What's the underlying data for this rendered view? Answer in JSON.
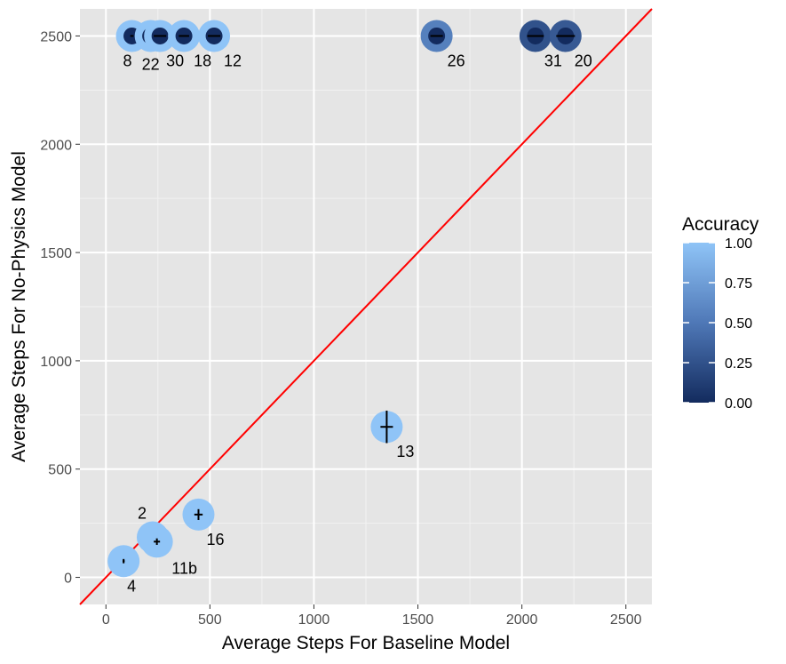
{
  "chart_data": {
    "type": "scatter",
    "xlabel": "Average Steps For Baseline Model",
    "ylabel": "Average Steps For No-Physics Model",
    "xlim": [
      -125,
      2625
    ],
    "ylim": [
      -125,
      2625
    ],
    "xticks": [
      0,
      500,
      1000,
      1500,
      2000,
      2500
    ],
    "yticks": [
      0,
      500,
      1000,
      1500,
      2000,
      2500
    ],
    "grid": true,
    "reference_line": {
      "slope": 1,
      "intercept": 0,
      "color": "#ff0000"
    },
    "legend": {
      "title": "Accuracy",
      "type": "colorbar",
      "position": "right",
      "ticks": [
        "1.00",
        "0.75",
        "0.50",
        "0.25",
        "0.00"
      ],
      "color_low": "#132b5e",
      "color_high": "#8fc4f7"
    },
    "points": [
      {
        "label": "8",
        "x": 125,
        "y": 2500,
        "acc_baseline": 1.0,
        "acc_nophysics": 0.0,
        "xerr": 8,
        "yerr": 0
      },
      {
        "label": "22",
        "x": 215,
        "y": 2500,
        "acc_baseline": 1.0,
        "acc_nophysics": 0.0,
        "xerr": 15,
        "yerr": 0
      },
      {
        "label": "30",
        "x": 260,
        "y": 2500,
        "acc_baseline": 1.0,
        "acc_nophysics": 0.0,
        "xerr": 30,
        "yerr": 0
      },
      {
        "label": "18",
        "x": 375,
        "y": 2500,
        "acc_baseline": 1.0,
        "acc_nophysics": 0.0,
        "xerr": 25,
        "yerr": 0
      },
      {
        "label": "12",
        "x": 520,
        "y": 2500,
        "acc_baseline": 1.0,
        "acc_nophysics": 0.0,
        "xerr": 30,
        "yerr": 0
      },
      {
        "label": "26",
        "x": 1590,
        "y": 2500,
        "acc_baseline": 0.55,
        "acc_nophysics": 0.0,
        "xerr": 30,
        "yerr": 0
      },
      {
        "label": "31",
        "x": 2065,
        "y": 2500,
        "acc_baseline": 0.25,
        "acc_nophysics": 0.0,
        "xerr": 40,
        "yerr": 0
      },
      {
        "label": "20",
        "x": 2210,
        "y": 2500,
        "acc_baseline": 0.3,
        "acc_nophysics": 0.0,
        "xerr": 45,
        "yerr": 0
      },
      {
        "label": "13",
        "x": 1350,
        "y": 695,
        "acc_baseline": 1.0,
        "acc_nophysics": 1.0,
        "xerr": 30,
        "yerr": 75
      },
      {
        "label": "16",
        "x": 445,
        "y": 290,
        "acc_baseline": 1.0,
        "acc_nophysics": 1.0,
        "xerr": 20,
        "yerr": 25
      },
      {
        "label": "2",
        "x": 225,
        "y": 185,
        "acc_baseline": 1.0,
        "acc_nophysics": 1.0,
        "xerr": 10,
        "yerr": 10
      },
      {
        "label": "11b",
        "x": 245,
        "y": 165,
        "acc_baseline": 1.0,
        "acc_nophysics": 1.0,
        "xerr": 15,
        "yerr": 15
      },
      {
        "label": "4",
        "x": 85,
        "y": 75,
        "acc_baseline": 1.0,
        "acc_nophysics": 1.0,
        "xerr": 5,
        "yerr": 10
      }
    ]
  }
}
